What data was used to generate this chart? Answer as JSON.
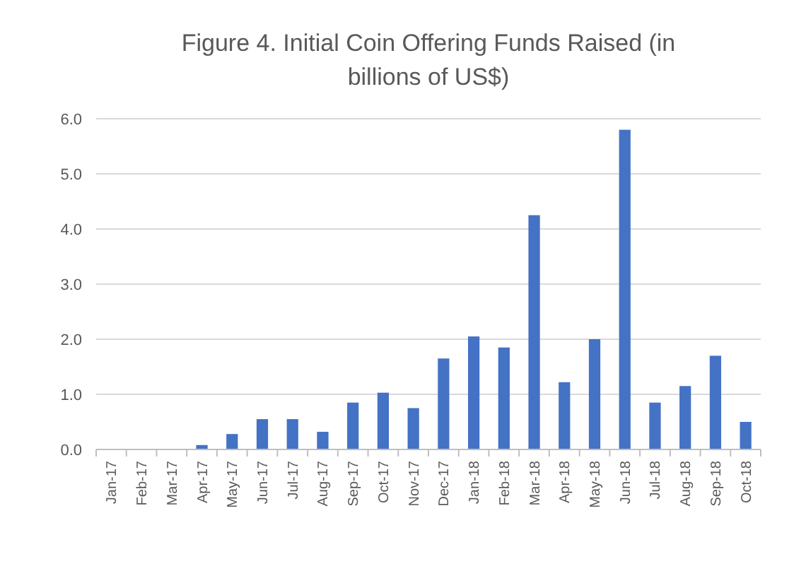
{
  "chart_data": {
    "type": "bar",
    "title": "Figure 4. Initial Coin Offering Funds Raised (in billions of US$)",
    "categories": [
      "Jan-17",
      "Feb-17",
      "Mar-17",
      "Apr-17",
      "May-17",
      "Jun-17",
      "Jul-17",
      "Aug-17",
      "Sep-17",
      "Oct-17",
      "Nov-17",
      "Dec-17",
      "Jan-18",
      "Feb-18",
      "Mar-18",
      "Apr-18",
      "May-18",
      "Jun-18",
      "Jul-18",
      "Aug-18",
      "Sep-18",
      "Oct-18"
    ],
    "values": [
      0,
      0,
      0,
      0.08,
      0.28,
      0.55,
      0.55,
      0.32,
      0.85,
      1.03,
      0.75,
      1.65,
      2.05,
      1.85,
      4.25,
      1.22,
      2.0,
      5.8,
      0.85,
      1.15,
      1.7,
      0.5
    ],
    "color": "#4472c4",
    "ylim": [
      0,
      6
    ],
    "yticks": [
      {
        "value": 0,
        "label": "0.0"
      },
      {
        "value": 1,
        "label": "1.0"
      },
      {
        "value": 2,
        "label": "2.0"
      },
      {
        "value": 3,
        "label": "3.0"
      },
      {
        "value": 4,
        "label": "4.0"
      },
      {
        "value": 5,
        "label": "5.0"
      },
      {
        "value": 6,
        "label": "6.0"
      }
    ],
    "grid": "y"
  }
}
